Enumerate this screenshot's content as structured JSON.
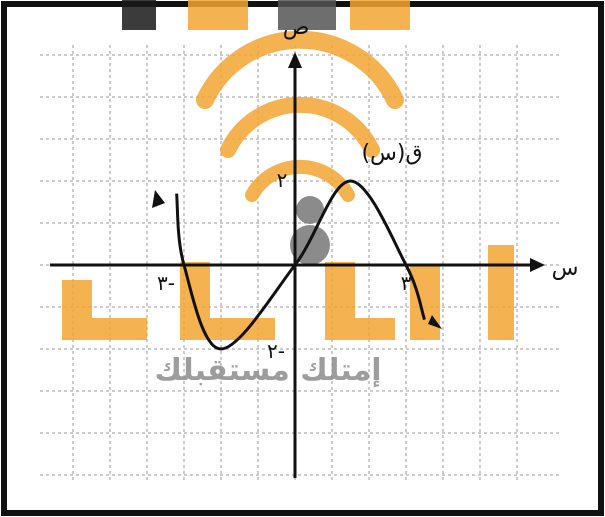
{
  "figure": {
    "x_axis_label": "س",
    "y_axis_label": "ص",
    "curve_label": "ق(س)",
    "tick_label_y_pos": "٢",
    "tick_label_y_neg": "٢-",
    "tick_label_x_pos": "٣",
    "tick_label_x_neg": "٣-",
    "grid": true
  },
  "curve": {
    "description_points": [
      {
        "x": -3.2,
        "y": 1.7
      },
      {
        "x": -3,
        "y": 0
      },
      {
        "x": -2,
        "y": -2
      },
      {
        "x": 0,
        "y": 0
      },
      {
        "x": 1.5,
        "y": 2
      },
      {
        "x": 3,
        "y": 0
      },
      {
        "x": 3.5,
        "y": -1.3
      }
    ]
  },
  "watermark": {
    "brand_letters": "العلم",
    "tagline": "إمتلك مستقبلك",
    "accent_color": "#f4a532",
    "tagline_color": "#8c8c8c"
  },
  "colors": {
    "border": "#111111",
    "grid": "#9a9a9a",
    "curve": "#111111"
  }
}
